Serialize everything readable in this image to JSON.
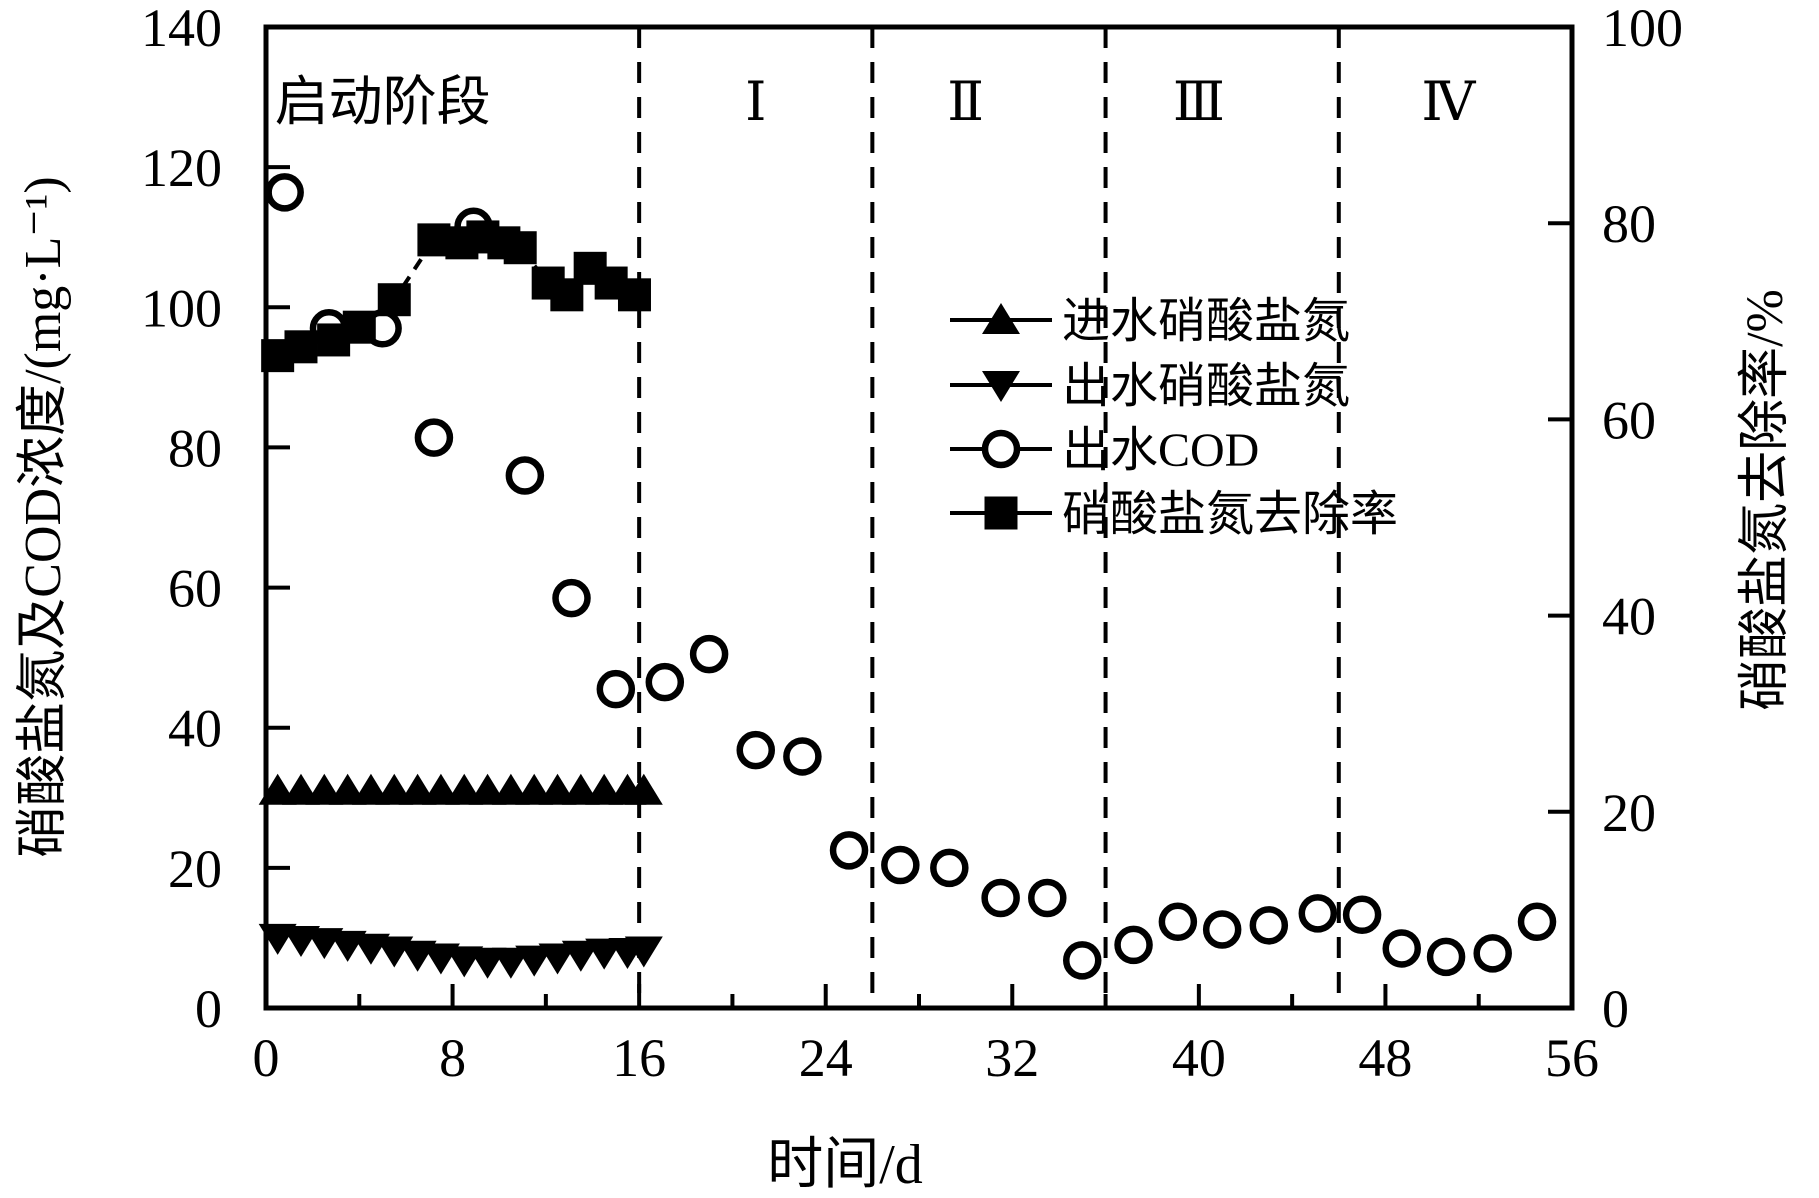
{
  "colors": {
    "ink": "#000000",
    "paper": "#ffffff"
  },
  "chart_data": {
    "type": "scatter",
    "title": "",
    "xlabel": "时间/d",
    "ylabel_left": "硝酸盐氮及COD浓度/(mg·L⁻¹)",
    "ylabel_right": "硝酸盐氮去除率/%",
    "xlim": [
      0,
      56
    ],
    "x_major_ticks": [
      0,
      8,
      16,
      24,
      32,
      40,
      48,
      56
    ],
    "x_minor_ticks": [
      4,
      12,
      20,
      28,
      36,
      44,
      52
    ],
    "ylim_left": [
      0,
      140
    ],
    "y_left_ticks": [
      0,
      20,
      40,
      60,
      80,
      100,
      120,
      140
    ],
    "ylim_right": [
      0,
      100
    ],
    "y_right_ticks": [
      0,
      20,
      40,
      60,
      80,
      100
    ],
    "grid": false,
    "frame": true,
    "phase_divider_days": [
      16,
      26,
      36,
      46
    ],
    "phases": [
      {
        "label": "启动阶段",
        "center_day": 5.0
      },
      {
        "label": "Ⅰ",
        "center_day": 21
      },
      {
        "label": "Ⅱ",
        "center_day": 30
      },
      {
        "label": "Ⅲ",
        "center_day": 40
      },
      {
        "label": "Ⅳ",
        "center_day": 50.7
      }
    ],
    "legend": {
      "position": "center-right-upper",
      "items": [
        "进水硝酸盐氮",
        "出水硝酸盐氮",
        "出水COD",
        "硝酸盐氮去除率"
      ]
    },
    "series": [
      {
        "id": "influent-nitrate-n",
        "name": "进水硝酸盐氮",
        "marker": "triangle-up",
        "fill": "solid",
        "axis": "left",
        "connect": false,
        "points": [
          [
            0.5,
            31
          ],
          [
            1.5,
            31
          ],
          [
            2.5,
            31
          ],
          [
            3.5,
            31
          ],
          [
            4.5,
            31
          ],
          [
            5.5,
            31
          ],
          [
            6.5,
            31
          ],
          [
            7.5,
            31
          ],
          [
            8.5,
            31
          ],
          [
            9.5,
            31
          ],
          [
            10.5,
            31
          ],
          [
            11.5,
            31
          ],
          [
            12.5,
            31
          ],
          [
            13.5,
            31
          ],
          [
            14.5,
            31
          ],
          [
            15.5,
            31
          ],
          [
            16.2,
            31
          ]
        ]
      },
      {
        "id": "effluent-nitrate-n",
        "name": "出水硝酸盐氮",
        "marker": "triangle-down",
        "fill": "solid",
        "axis": "left",
        "connect": false,
        "points": [
          [
            0.5,
            10
          ],
          [
            1.5,
            9.7
          ],
          [
            2.5,
            9.4
          ],
          [
            3.5,
            9.0
          ],
          [
            4.5,
            8.6
          ],
          [
            5.5,
            8.2
          ],
          [
            6.5,
            7.6
          ],
          [
            7.5,
            7.2
          ],
          [
            8.5,
            6.8
          ],
          [
            9.5,
            6.6
          ],
          [
            10.5,
            6.6
          ],
          [
            11.5,
            6.9
          ],
          [
            12.5,
            7.2
          ],
          [
            13.5,
            7.6
          ],
          [
            14.5,
            7.9
          ],
          [
            15.5,
            8.0
          ],
          [
            16.2,
            8.2
          ]
        ]
      },
      {
        "id": "effluent-cod",
        "name": "出水COD",
        "marker": "circle",
        "fill": "open",
        "axis": "left",
        "connect": false,
        "points": [
          [
            0.8,
            116.4
          ],
          [
            2.7,
            97
          ],
          [
            5,
            97
          ],
          [
            7.2,
            81.4
          ],
          [
            8.9,
            111.5
          ],
          [
            11.1,
            76
          ],
          [
            13.1,
            58.5
          ],
          [
            15,
            45.5
          ],
          [
            17.1,
            46.5
          ],
          [
            19,
            50.5
          ],
          [
            21,
            36.8
          ],
          [
            23,
            35.9
          ],
          [
            25,
            22.5
          ],
          [
            27.2,
            20.4
          ],
          [
            29.3,
            20
          ],
          [
            31.5,
            15.7
          ],
          [
            33.5,
            15.7
          ],
          [
            35,
            6.8
          ],
          [
            37.2,
            9
          ],
          [
            39.1,
            12.3
          ],
          [
            41,
            11.2
          ],
          [
            43,
            11.8
          ],
          [
            45.1,
            13.5
          ],
          [
            47,
            13.3
          ],
          [
            48.7,
            8.5
          ],
          [
            50.6,
            7.3
          ],
          [
            52.6,
            7.8
          ],
          [
            54.5,
            12.3
          ]
        ]
      },
      {
        "id": "nitrate-removal-rate",
        "name": "硝酸盐氮去除率",
        "marker": "square",
        "fill": "solid",
        "axis": "right",
        "connect": true,
        "points": [
          [
            0.5,
            66.5
          ],
          [
            1.5,
            67.4
          ],
          [
            2.9,
            68.1
          ],
          [
            4.0,
            69.4
          ],
          [
            5.5,
            72.2
          ],
          [
            7.2,
            78.3
          ],
          [
            8.4,
            78.0
          ],
          [
            9.3,
            78.6
          ],
          [
            10.2,
            78.0
          ],
          [
            10.9,
            77.5
          ],
          [
            12.1,
            73.9
          ],
          [
            12.9,
            72.7
          ],
          [
            13.9,
            75.4
          ],
          [
            14.8,
            73.9
          ],
          [
            15.8,
            72.7
          ]
        ]
      }
    ]
  }
}
